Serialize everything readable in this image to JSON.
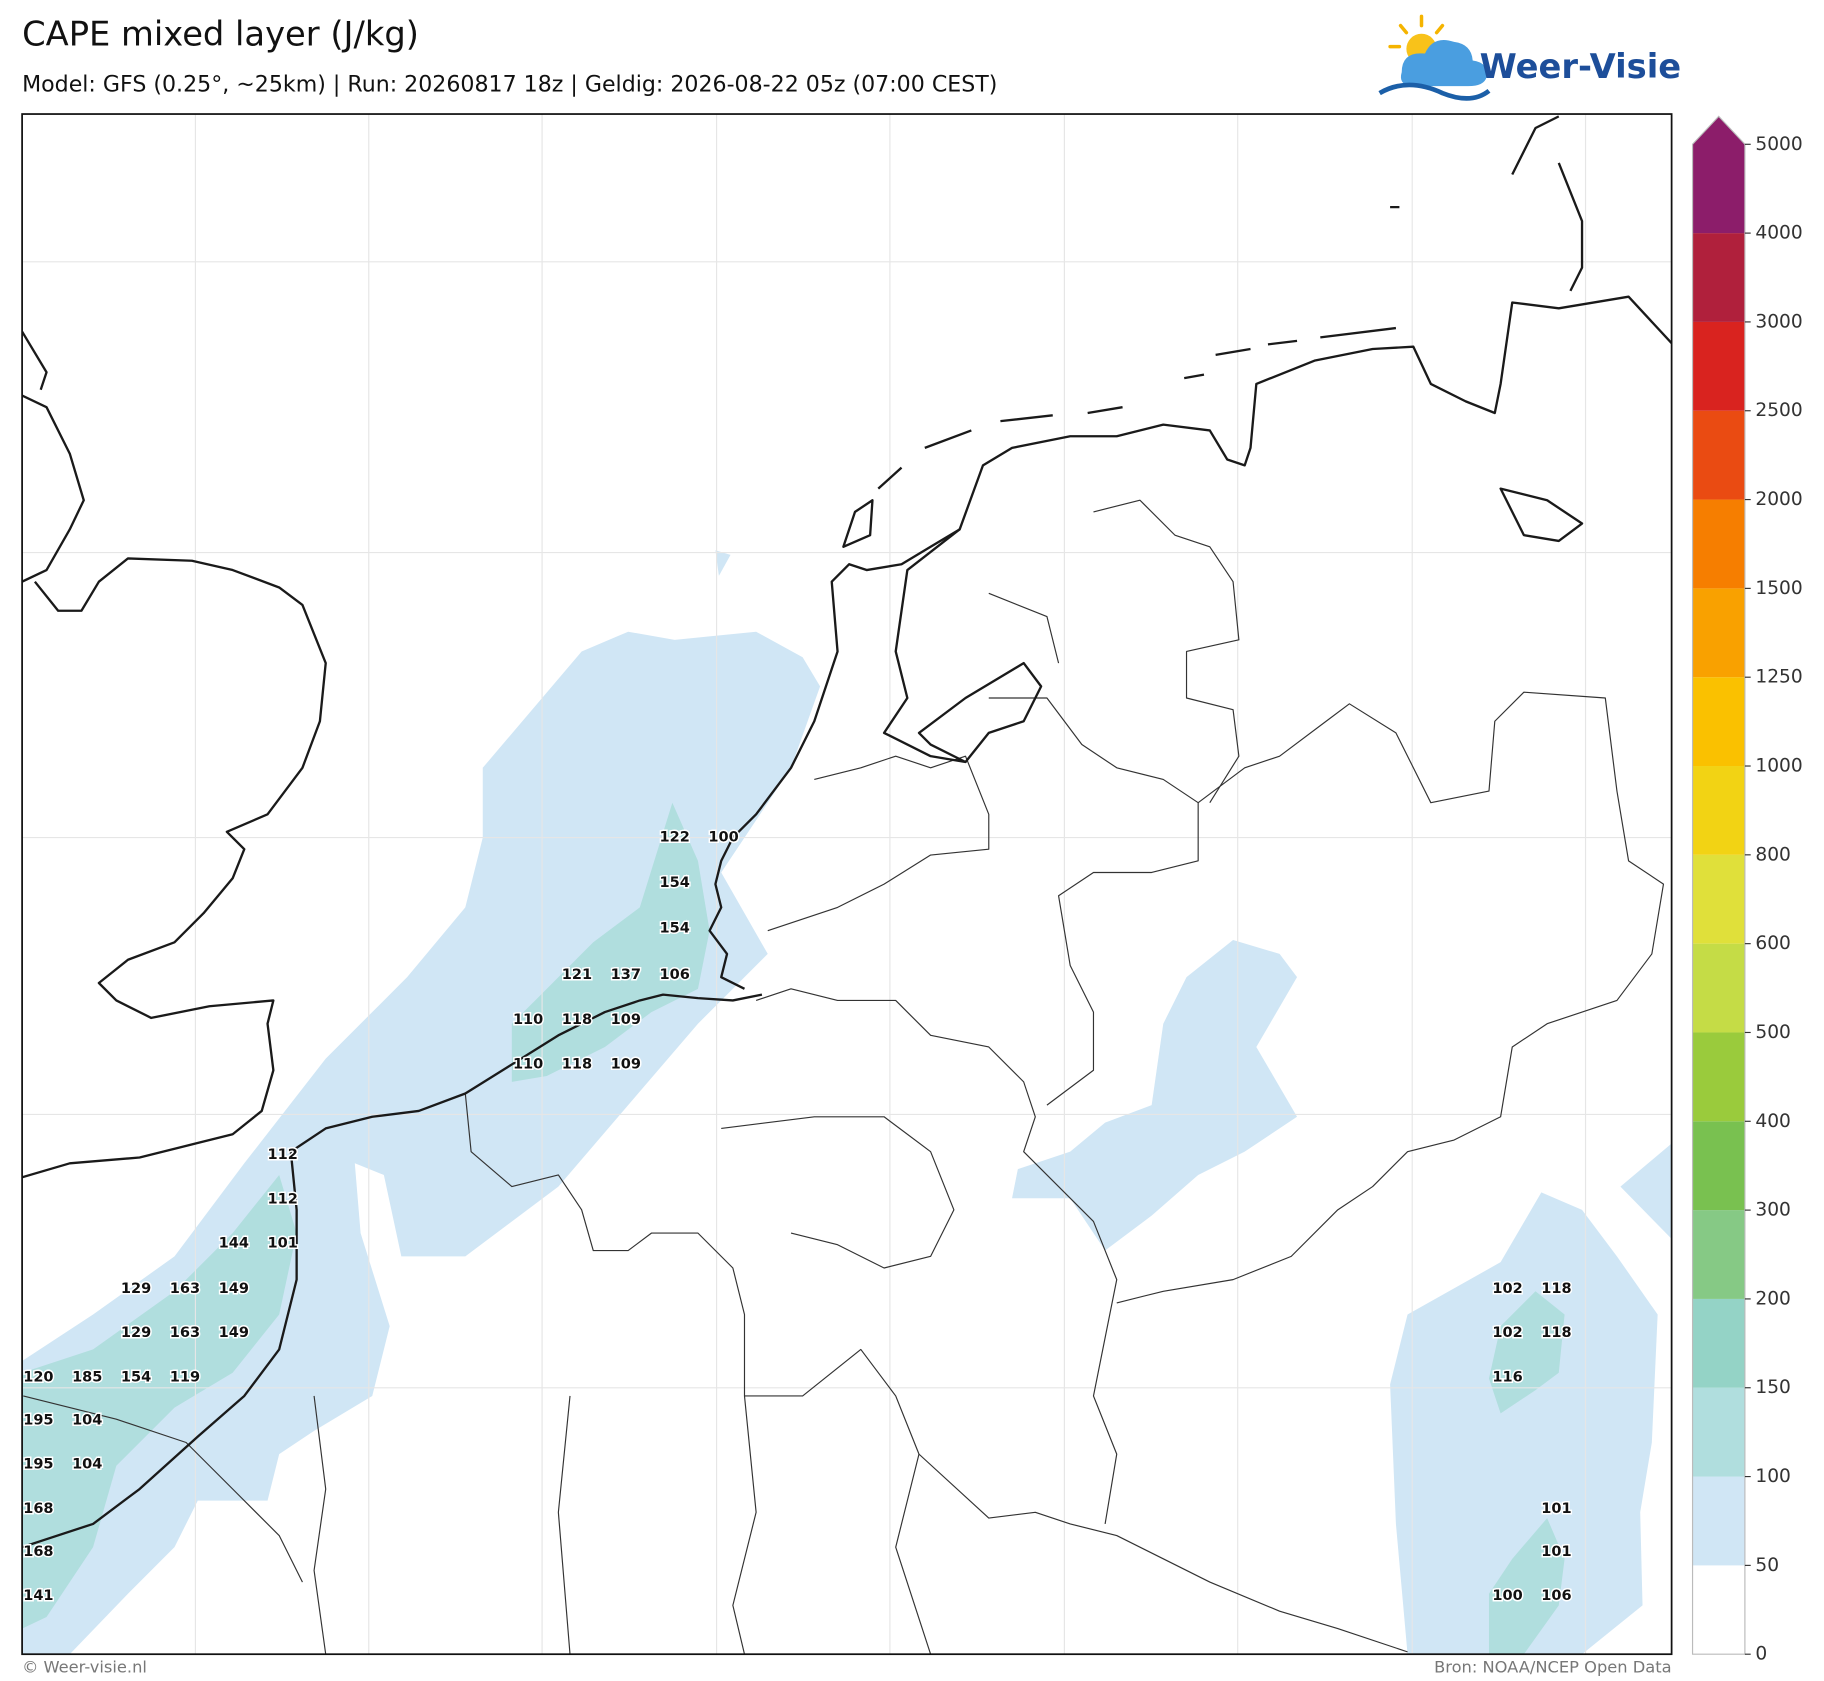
{
  "header": {
    "title": "CAPE mixed layer (J/kg)",
    "subtitle": "Model: GFS (0.25°, ~25km)  |  Run: 20260817 18z  |  Geldig: 2026-08-22 05z (07:00 CEST)"
  },
  "logo": {
    "text": "Weer-Visie"
  },
  "colorbar": {
    "levels": [
      0,
      50,
      100,
      150,
      200,
      300,
      400,
      500,
      600,
      800,
      1000,
      1250,
      1500,
      2000,
      2500,
      3000,
      4000,
      5000
    ],
    "colors": [
      "#ffffff",
      "#d0e6f5",
      "#b0dede",
      "#94d3c6",
      "#86c985",
      "#79c150",
      "#9acb3c",
      "#c5dc46",
      "#e0e03a",
      "#f2d314",
      "#fac100",
      "#f9a100",
      "#f67e00",
      "#ea4b12",
      "#d9231f",
      "#b0203c",
      "#8c1d6a"
    ]
  },
  "map": {
    "values": [
      122,
      100,
      154,
      154,
      121,
      137,
      106,
      110,
      118,
      109,
      110,
      118,
      109,
      112,
      112,
      144,
      101,
      129,
      163,
      149,
      129,
      163,
      149,
      120,
      185,
      154,
      119,
      195,
      104,
      195,
      104,
      168,
      168,
      141,
      102,
      118,
      102,
      118,
      116,
      101,
      101,
      100,
      106
    ]
  },
  "footer": {
    "left": "© Weer-visie.nl",
    "right": "Bron: NOAA/NCEP Open Data"
  }
}
